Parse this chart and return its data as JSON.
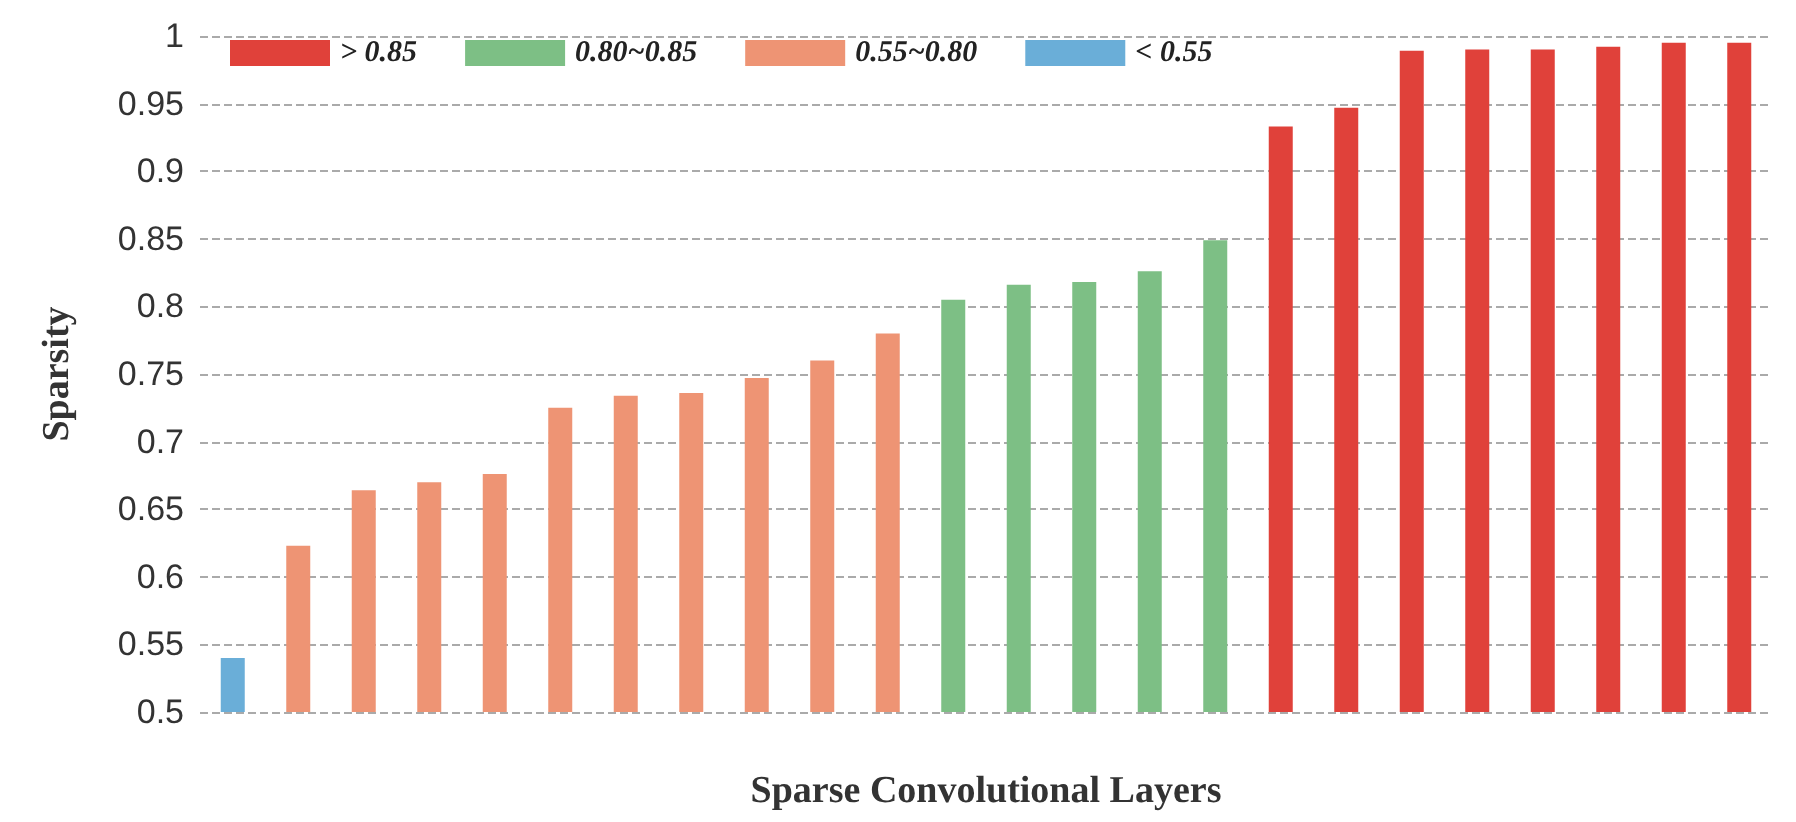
{
  "chart_data": {
    "type": "bar",
    "xlabel": "Sparse Convolutional Layers",
    "ylabel": "Sparsity",
    "categories": [
      null,
      null,
      null,
      null,
      null,
      null,
      null,
      null,
      null,
      null,
      null,
      null,
      null,
      null,
      null,
      null,
      null,
      null,
      null,
      null,
      null,
      null,
      null,
      null
    ],
    "series": [
      {
        "name": "> 0.85",
        "color": "#e0413a",
        "values": [
          null,
          null,
          null,
          null,
          null,
          null,
          null,
          null,
          null,
          null,
          null,
          null,
          null,
          null,
          null,
          null,
          0.933,
          0.947,
          0.989,
          0.99,
          0.99,
          0.992,
          0.995,
          0.995
        ]
      },
      {
        "name": "0.80~0.85",
        "color": "#7dbf85",
        "values": [
          null,
          null,
          null,
          null,
          null,
          null,
          null,
          null,
          null,
          null,
          null,
          0.805,
          0.816,
          0.818,
          0.826,
          0.849,
          null,
          null,
          null,
          null,
          null,
          null,
          null,
          null
        ]
      },
      {
        "name": "0.55~0.80",
        "color": "#ee9474",
        "values": [
          null,
          0.623,
          0.664,
          0.67,
          0.676,
          0.725,
          0.734,
          0.736,
          0.747,
          0.76,
          0.78,
          null,
          null,
          null,
          null,
          null,
          null,
          null,
          null,
          null,
          null,
          null,
          null,
          null
        ]
      },
      {
        "name": "< 0.55",
        "color": "#6aaed8",
        "values": [
          0.54,
          null,
          null,
          null,
          null,
          null,
          null,
          null,
          null,
          null,
          null,
          null,
          null,
          null,
          null,
          null,
          null,
          null,
          null,
          null,
          null,
          null,
          null,
          null
        ]
      }
    ],
    "ylim": [
      0.5,
      1
    ],
    "yticks": [
      0.5,
      0.55,
      0.6,
      0.65,
      0.7,
      0.75,
      0.8,
      0.85,
      0.9,
      0.95,
      1
    ],
    "grid": "y",
    "legend": "top left"
  }
}
